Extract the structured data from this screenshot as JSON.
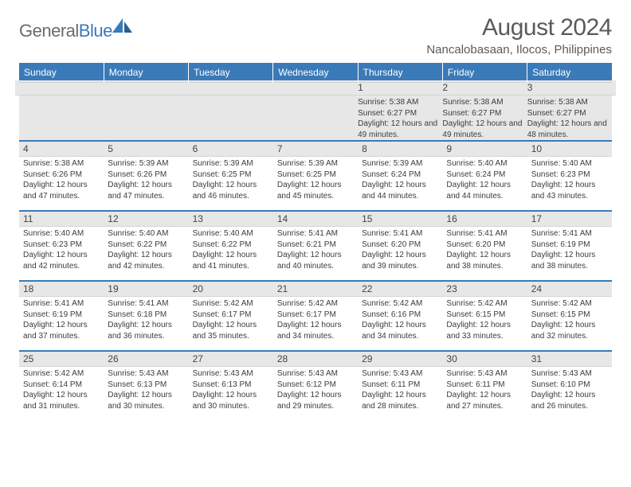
{
  "logo": {
    "text1": "General",
    "text2": "Blue"
  },
  "title": "August 2024",
  "location": "Nancalobasaan, Ilocos, Philippines",
  "day_headers": [
    "Sunday",
    "Monday",
    "Tuesday",
    "Wednesday",
    "Thursday",
    "Friday",
    "Saturday"
  ],
  "colors": {
    "header_bg": "#3a7ab8",
    "header_text": "#ffffff",
    "daynum_bg": "#e7e7e7",
    "border_top": "#3a7ab8",
    "text": "#3c3c3c",
    "title_text": "#5a5a5a"
  },
  "weeks": [
    [
      null,
      null,
      null,
      null,
      {
        "n": "1",
        "sr": "5:38 AM",
        "ss": "6:27 PM",
        "dl": "12 hours and 49 minutes."
      },
      {
        "n": "2",
        "sr": "5:38 AM",
        "ss": "6:27 PM",
        "dl": "12 hours and 49 minutes."
      },
      {
        "n": "3",
        "sr": "5:38 AM",
        "ss": "6:27 PM",
        "dl": "12 hours and 48 minutes."
      }
    ],
    [
      {
        "n": "4",
        "sr": "5:38 AM",
        "ss": "6:26 PM",
        "dl": "12 hours and 47 minutes."
      },
      {
        "n": "5",
        "sr": "5:39 AM",
        "ss": "6:26 PM",
        "dl": "12 hours and 47 minutes."
      },
      {
        "n": "6",
        "sr": "5:39 AM",
        "ss": "6:25 PM",
        "dl": "12 hours and 46 minutes."
      },
      {
        "n": "7",
        "sr": "5:39 AM",
        "ss": "6:25 PM",
        "dl": "12 hours and 45 minutes."
      },
      {
        "n": "8",
        "sr": "5:39 AM",
        "ss": "6:24 PM",
        "dl": "12 hours and 44 minutes."
      },
      {
        "n": "9",
        "sr": "5:40 AM",
        "ss": "6:24 PM",
        "dl": "12 hours and 44 minutes."
      },
      {
        "n": "10",
        "sr": "5:40 AM",
        "ss": "6:23 PM",
        "dl": "12 hours and 43 minutes."
      }
    ],
    [
      {
        "n": "11",
        "sr": "5:40 AM",
        "ss": "6:23 PM",
        "dl": "12 hours and 42 minutes."
      },
      {
        "n": "12",
        "sr": "5:40 AM",
        "ss": "6:22 PM",
        "dl": "12 hours and 42 minutes."
      },
      {
        "n": "13",
        "sr": "5:40 AM",
        "ss": "6:22 PM",
        "dl": "12 hours and 41 minutes."
      },
      {
        "n": "14",
        "sr": "5:41 AM",
        "ss": "6:21 PM",
        "dl": "12 hours and 40 minutes."
      },
      {
        "n": "15",
        "sr": "5:41 AM",
        "ss": "6:20 PM",
        "dl": "12 hours and 39 minutes."
      },
      {
        "n": "16",
        "sr": "5:41 AM",
        "ss": "6:20 PM",
        "dl": "12 hours and 38 minutes."
      },
      {
        "n": "17",
        "sr": "5:41 AM",
        "ss": "6:19 PM",
        "dl": "12 hours and 38 minutes."
      }
    ],
    [
      {
        "n": "18",
        "sr": "5:41 AM",
        "ss": "6:19 PM",
        "dl": "12 hours and 37 minutes."
      },
      {
        "n": "19",
        "sr": "5:41 AM",
        "ss": "6:18 PM",
        "dl": "12 hours and 36 minutes."
      },
      {
        "n": "20",
        "sr": "5:42 AM",
        "ss": "6:17 PM",
        "dl": "12 hours and 35 minutes."
      },
      {
        "n": "21",
        "sr": "5:42 AM",
        "ss": "6:17 PM",
        "dl": "12 hours and 34 minutes."
      },
      {
        "n": "22",
        "sr": "5:42 AM",
        "ss": "6:16 PM",
        "dl": "12 hours and 34 minutes."
      },
      {
        "n": "23",
        "sr": "5:42 AM",
        "ss": "6:15 PM",
        "dl": "12 hours and 33 minutes."
      },
      {
        "n": "24",
        "sr": "5:42 AM",
        "ss": "6:15 PM",
        "dl": "12 hours and 32 minutes."
      }
    ],
    [
      {
        "n": "25",
        "sr": "5:42 AM",
        "ss": "6:14 PM",
        "dl": "12 hours and 31 minutes."
      },
      {
        "n": "26",
        "sr": "5:43 AM",
        "ss": "6:13 PM",
        "dl": "12 hours and 30 minutes."
      },
      {
        "n": "27",
        "sr": "5:43 AM",
        "ss": "6:13 PM",
        "dl": "12 hours and 30 minutes."
      },
      {
        "n": "28",
        "sr": "5:43 AM",
        "ss": "6:12 PM",
        "dl": "12 hours and 29 minutes."
      },
      {
        "n": "29",
        "sr": "5:43 AM",
        "ss": "6:11 PM",
        "dl": "12 hours and 28 minutes."
      },
      {
        "n": "30",
        "sr": "5:43 AM",
        "ss": "6:11 PM",
        "dl": "12 hours and 27 minutes."
      },
      {
        "n": "31",
        "sr": "5:43 AM",
        "ss": "6:10 PM",
        "dl": "12 hours and 26 minutes."
      }
    ]
  ],
  "labels": {
    "sunrise": "Sunrise:",
    "sunset": "Sunset:",
    "daylight": "Daylight:"
  }
}
